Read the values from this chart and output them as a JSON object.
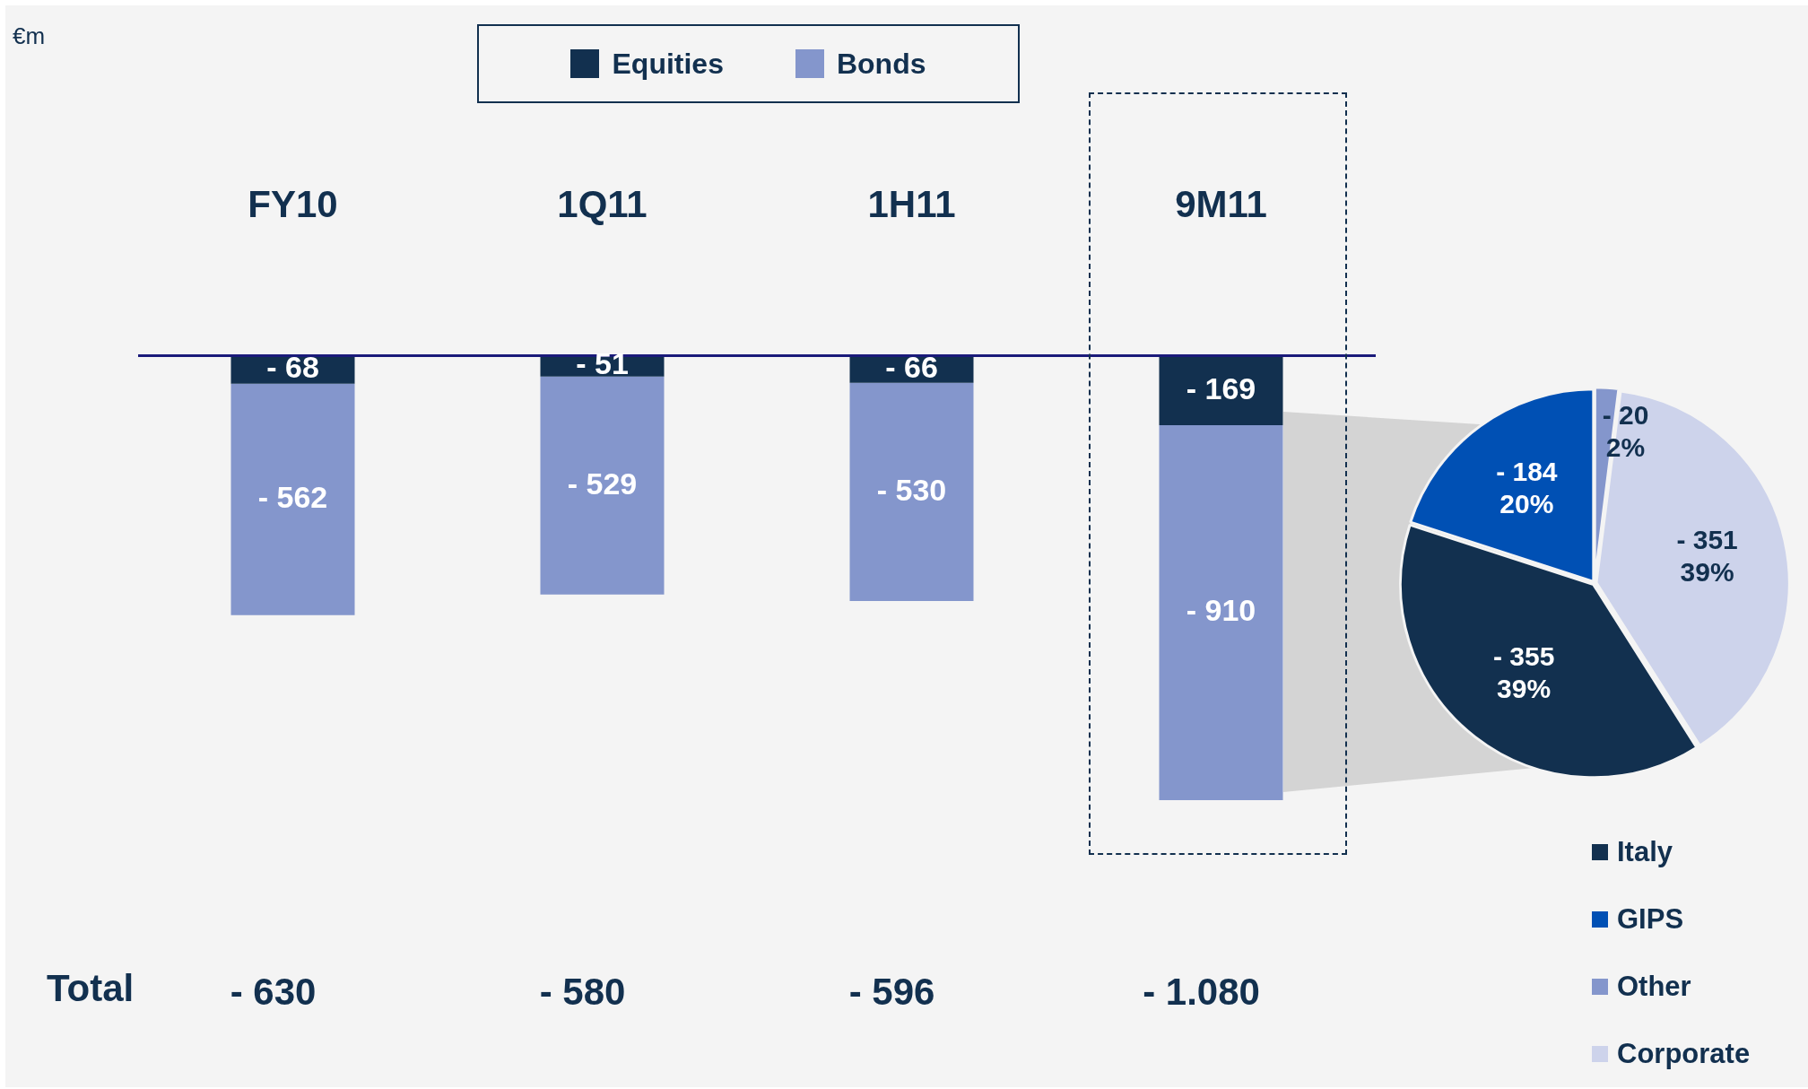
{
  "chart_data": [
    {
      "type": "bar",
      "stacked": true,
      "categories": [
        "FY10",
        "1Q11",
        "1H11",
        "9M11"
      ],
      "legend": "top",
      "series": [
        {
          "name": "Equities",
          "color": "#12304f",
          "values": [
            -68,
            -51,
            -66,
            -169
          ],
          "value_labels": [
            "- 68",
            "- 51",
            "- 66",
            "- 169"
          ]
        },
        {
          "name": "Bonds",
          "color": "#8496cc",
          "values": [
            -562,
            -529,
            -530,
            -910
          ],
          "value_labels": [
            "- 562",
            "- 529",
            "- 530",
            "- 910"
          ]
        }
      ],
      "annotations": [
        "€m",
        "Total",
        "- 630",
        "- 580",
        "- 596",
        "- 1.080"
      ]
    },
    {
      "type": "pie",
      "categories": [
        "Italy",
        "GIPS",
        "Other",
        "Corporate"
      ],
      "values": [
        39,
        20,
        2,
        39
      ],
      "colors": [
        "#12304f",
        "#0050b4",
        "#8496cc",
        "#cdd3eb"
      ],
      "value_labels": [
        "- 355\n39%",
        "- 184\n20%",
        "- 20\n2%",
        "- 351\n39%"
      ],
      "legend": "bottom"
    }
  ]
}
